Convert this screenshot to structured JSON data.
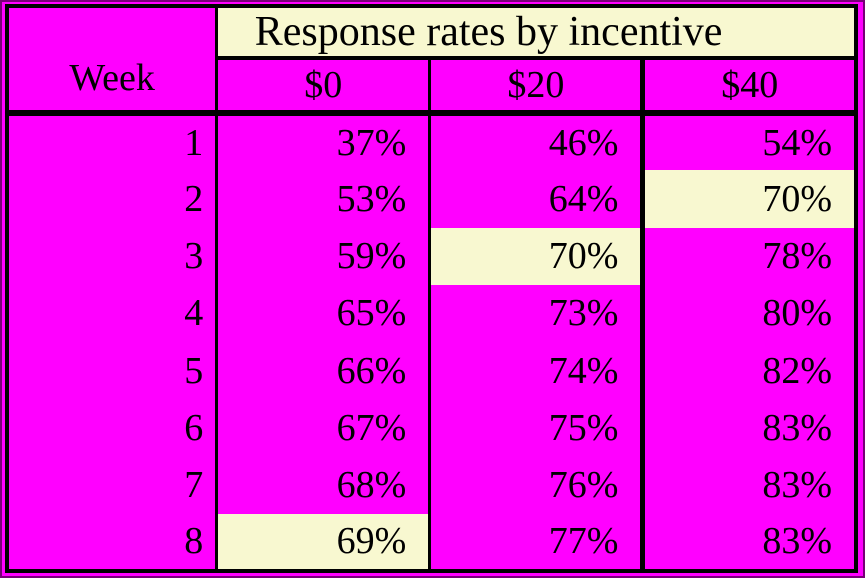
{
  "colors": {
    "page_bg": "#FF00FF",
    "cell_bg": "#FF00FF",
    "highlight_bg": "#F8F8D0",
    "border": "#000000",
    "text": "#000000",
    "frame": "#770077"
  },
  "table": {
    "title": "Response rates by incentive",
    "week_header": "Week",
    "columns": [
      "$0",
      "$20",
      "$40"
    ],
    "rows": [
      {
        "week": "1",
        "values": [
          "37%",
          "46%",
          "54%"
        ],
        "highlight": null
      },
      {
        "week": "2",
        "values": [
          "53%",
          "64%",
          "70%"
        ],
        "highlight": 2
      },
      {
        "week": "3",
        "values": [
          "59%",
          "70%",
          "78%"
        ],
        "highlight": 1
      },
      {
        "week": "4",
        "values": [
          "65%",
          "73%",
          "80%"
        ],
        "highlight": null
      },
      {
        "week": "5",
        "values": [
          "66%",
          "74%",
          "82%"
        ],
        "highlight": null
      },
      {
        "week": "6",
        "values": [
          "67%",
          "75%",
          "83%"
        ],
        "highlight": null
      },
      {
        "week": "7",
        "values": [
          "68%",
          "76%",
          "83%"
        ],
        "highlight": null
      },
      {
        "week": "8",
        "values": [
          "69%",
          "77%",
          "83%"
        ],
        "highlight": 0
      }
    ]
  },
  "chart_data": {
    "type": "table",
    "title": "Response rates by incentive",
    "xlabel": "Week",
    "categories": [
      1,
      2,
      3,
      4,
      5,
      6,
      7,
      8
    ],
    "series": [
      {
        "name": "$0",
        "values": [
          37,
          53,
          59,
          65,
          66,
          67,
          68,
          69
        ]
      },
      {
        "name": "$20",
        "values": [
          46,
          64,
          70,
          73,
          74,
          75,
          76,
          77
        ]
      },
      {
        "name": "$40",
        "values": [
          54,
          70,
          78,
          80,
          82,
          83,
          83,
          83
        ]
      }
    ],
    "unit": "%",
    "highlighted_cells": [
      {
        "week": 2,
        "series": "$40",
        "value": 70
      },
      {
        "week": 3,
        "series": "$20",
        "value": 70
      },
      {
        "week": 8,
        "series": "$0",
        "value": 69
      }
    ]
  }
}
